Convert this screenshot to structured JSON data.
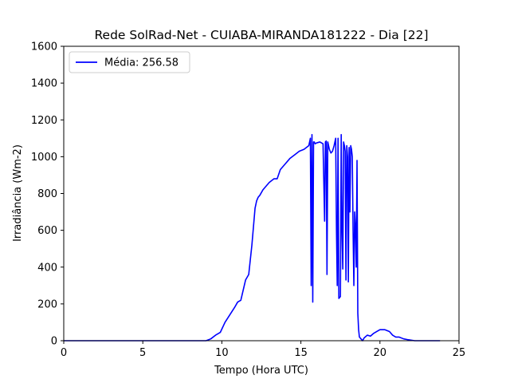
{
  "chart_data": {
    "type": "line",
    "title": "Rede SolRad-Net - CUIABA-MIRANDA181222 - Dia [22]",
    "xlabel": "Tempo (Hora UTC)",
    "ylabel": "Irradiância (Wm-2)",
    "xlim": [
      0,
      25
    ],
    "ylim": [
      0,
      1600
    ],
    "xticks": [
      0,
      5,
      10,
      15,
      20,
      25
    ],
    "yticks": [
      0,
      200,
      400,
      600,
      800,
      1000,
      1200,
      1400,
      1600
    ],
    "grid": false,
    "legend_position": "upper-left",
    "series": [
      {
        "name": "Média: 256.58",
        "color": "#0000ff",
        "x": [
          0,
          9.0,
          9.3,
          9.6,
          9.9,
          10.2,
          10.5,
          10.8,
          11.0,
          11.2,
          11.5,
          11.7,
          11.9,
          12.0,
          12.1,
          12.2,
          12.3,
          12.4,
          12.6,
          12.8,
          13.0,
          13.3,
          13.5,
          13.7,
          14.0,
          14.3,
          14.6,
          14.9,
          15.2,
          15.5,
          15.6,
          15.65,
          15.7,
          15.75,
          15.8,
          15.85,
          15.9,
          16.0,
          16.2,
          16.4,
          16.5,
          16.55,
          16.6,
          16.65,
          16.7,
          16.75,
          16.8,
          16.9,
          17.0,
          17.1,
          17.2,
          17.25,
          17.3,
          17.35,
          17.4,
          17.5,
          17.55,
          17.6,
          17.65,
          17.7,
          17.75,
          17.8,
          17.85,
          17.9,
          17.95,
          18.0,
          18.05,
          18.1,
          18.15,
          18.2,
          18.25,
          18.3,
          18.35,
          18.4,
          18.45,
          18.5,
          18.55,
          18.6,
          18.65,
          18.7,
          18.8,
          18.9,
          19.0,
          19.2,
          19.4,
          19.6,
          19.8,
          20.0,
          20.3,
          20.6,
          20.8,
          21.0,
          21.2,
          21.5,
          21.8,
          22.2,
          23.8
        ],
        "y": [
          0,
          0,
          10,
          30,
          45,
          100,
          140,
          180,
          210,
          220,
          330,
          360,
          520,
          620,
          720,
          760,
          780,
          790,
          820,
          840,
          860,
          880,
          880,
          930,
          960,
          990,
          1010,
          1030,
          1040,
          1060,
          1100,
          300,
          1120,
          210,
          1080,
          1080,
          1070,
          1075,
          1080,
          1070,
          650,
          1080,
          1085,
          360,
          1080,
          1060,
          1040,
          1020,
          1030,
          1060,
          1100,
          600,
          300,
          1100,
          230,
          240,
          1120,
          600,
          390,
          1080,
          1060,
          1030,
          330,
          1060,
          1000,
          320,
          1050,
          700,
          1060,
          1040,
          1000,
          600,
          300,
          700,
          620,
          400,
          980,
          150,
          60,
          20,
          10,
          0,
          15,
          30,
          25,
          40,
          50,
          60,
          60,
          50,
          30,
          20,
          20,
          10,
          5,
          0,
          0
        ]
      }
    ]
  }
}
